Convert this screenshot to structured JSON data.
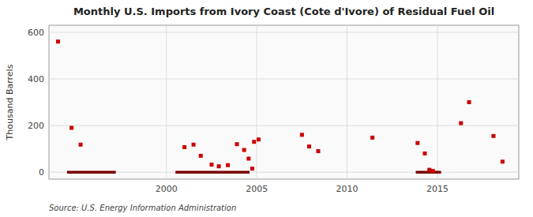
{
  "chart_data": {
    "type": "scatter",
    "title": "Monthly U.S. Imports from Ivory Coast (Cote d'Ivore) of Residual Fuel Oil",
    "ylabel": "Thousand Barrels",
    "source": "Source: U.S. Energy Information Administration",
    "xlim": [
      1993.5,
      2019.5
    ],
    "ylim": [
      -30,
      630
    ],
    "xticks": [
      2000,
      2005,
      2010,
      2015
    ],
    "yticks": [
      0,
      200,
      400,
      600
    ],
    "grid": true,
    "series": [
      {
        "type": "scatter",
        "color": "#cc0000",
        "marker": "square",
        "x": [
          1994.0,
          1994.75,
          1995.25,
          2001.0,
          2001.5,
          2001.9,
          2002.5,
          2002.9,
          2003.4,
          2003.9,
          2004.3,
          2004.55,
          2004.75,
          2004.85,
          2005.1,
          2007.5,
          2007.9,
          2008.4,
          2011.4,
          2013.9,
          2014.3,
          2014.55,
          2014.75,
          2016.3,
          2016.75,
          2018.1,
          2018.6
        ],
        "values": [
          560,
          190,
          118,
          107,
          118,
          70,
          32,
          25,
          30,
          120,
          95,
          58,
          15,
          130,
          140,
          160,
          110,
          90,
          148,
          125,
          80,
          10,
          5,
          210,
          300,
          155,
          45
        ]
      },
      {
        "type": "line",
        "color": "#7a0000",
        "x": [
          1994.5,
          1997.2
        ],
        "values": [
          0,
          0
        ]
      },
      {
        "type": "line",
        "color": "#7a0000",
        "x": [
          2000.5,
          2004.6
        ],
        "values": [
          0,
          0
        ]
      },
      {
        "type": "line",
        "color": "#7a0000",
        "x": [
          2013.8,
          2015.2
        ],
        "values": [
          0,
          0
        ]
      }
    ]
  }
}
